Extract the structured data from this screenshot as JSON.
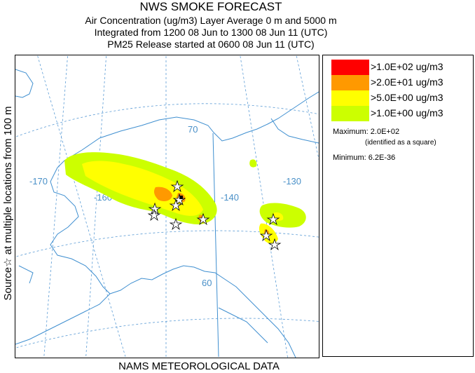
{
  "header": {
    "title": "NWS SMOKE FORECAST",
    "line1": "Air Concentration (ug/m3) Layer Average    0 m and  5000 m",
    "line2": "Integrated from 1200 08 Jun to 1300 08 Jun 11 (UTC)",
    "line3": "PM25 Release started at 0600 08 Jun 11 (UTC)"
  },
  "side_label": "Source☆  at multiple locations   from   100 m",
  "footer": "NAMS METEOROLOGICAL DATA",
  "legend": {
    "items": [
      {
        "label": ">1.0E+02 ug/m3",
        "color": "#ff0000"
      },
      {
        "label": ">2.0E+01 ug/m3",
        "color": "#ff9900"
      },
      {
        "label": ">5.0E+00 ug/m3",
        "color": "#ffff00"
      },
      {
        "label": ">1.0E+00 ug/m3",
        "color": "#ccff00"
      }
    ],
    "maximum": "Maximum: 2.0E+02",
    "maximum_note": "(identified as a square)",
    "minimum": "Minimum: 6.2E-36"
  },
  "map": {
    "grid_labels": {
      "lon_170": "-170",
      "lon_160": "-160",
      "lon_140": "-140",
      "lon_130": "-130",
      "lat_70": "70",
      "lat_60": "60"
    },
    "colors": {
      "coast": "#3f8fd0",
      "grid": "#5a9bd5"
    }
  }
}
